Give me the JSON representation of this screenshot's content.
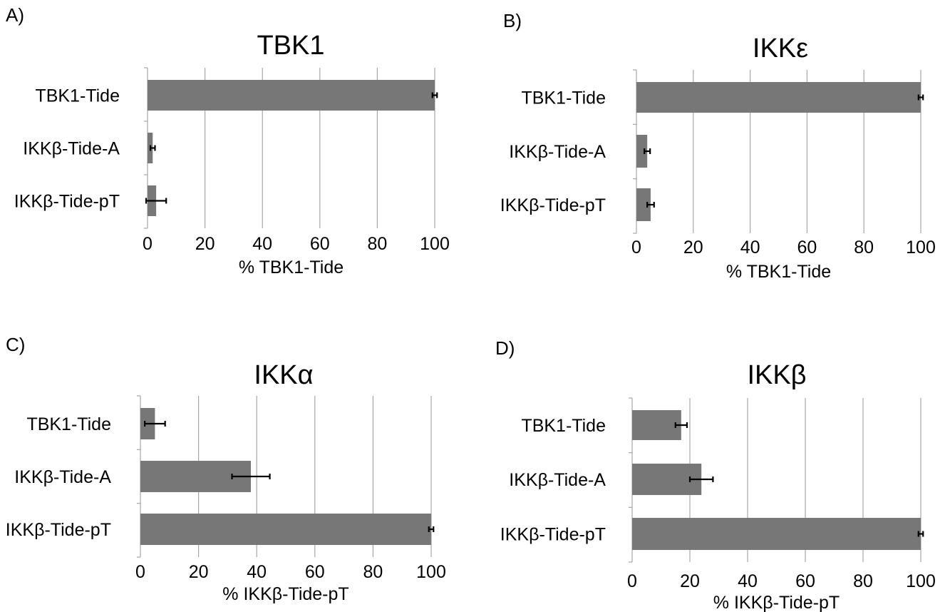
{
  "chart_data": [
    {
      "panel": "A)",
      "type": "bar",
      "orientation": "horizontal",
      "title": "TBK1",
      "xlabel": "% TBK1-Tide",
      "categories": [
        "TBK1-Tide",
        "IKKβ-Tide-A",
        "IKKβ-Tide-pT"
      ],
      "values": [
        100,
        1.8,
        3.0
      ],
      "errors": [
        0.8,
        0.8,
        3.5
      ],
      "xlim": [
        0,
        100
      ],
      "xticks": [
        "0",
        "20",
        "40",
        "60",
        "80",
        "100"
      ],
      "grid": "vertical",
      "bar_color": "#777777"
    },
    {
      "panel": "B)",
      "type": "bar",
      "orientation": "horizontal",
      "title": "IKKε",
      "xlabel": "% TBK1-Tide",
      "categories": [
        "TBK1-Tide",
        "IKKβ-Tide-A",
        "IKKβ-Tide-pT"
      ],
      "values": [
        100,
        3.8,
        5.0
      ],
      "errors": [
        0.8,
        1.0,
        1.2
      ],
      "xlim": [
        0,
        100
      ],
      "xticks": [
        "0",
        "20",
        "40",
        "60",
        "80",
        "100"
      ],
      "grid": "vertical",
      "bar_color": "#777777"
    },
    {
      "panel": "C)",
      "type": "bar",
      "orientation": "horizontal",
      "title": "IKKα",
      "xlabel": "% IKKβ-Tide-pT",
      "categories": [
        "TBK1-Tide",
        "IKKβ-Tide-A",
        "IKKβ-Tide-pT"
      ],
      "values": [
        5.0,
        38.0,
        100
      ],
      "errors": [
        3.5,
        6.5,
        0.8
      ],
      "xlim": [
        0,
        100
      ],
      "xticks": [
        "0",
        "20",
        "40",
        "60",
        "80",
        "100"
      ],
      "grid": "vertical",
      "bar_color": "#777777"
    },
    {
      "panel": "D)",
      "type": "bar",
      "orientation": "horizontal",
      "title": "IKKβ",
      "xlabel": "% IKKβ-Tide-pT",
      "categories": [
        "TBK1-Tide",
        "IKKβ-Tide-A",
        "IKKβ-Tide-pT"
      ],
      "values": [
        17.0,
        24.0,
        100
      ],
      "errors": [
        2.0,
        4.0,
        0.8
      ],
      "xlim": [
        0,
        100
      ],
      "xticks": [
        "0",
        "20",
        "40",
        "60",
        "80",
        "100"
      ],
      "grid": "vertical",
      "bar_color": "#777777"
    }
  ]
}
